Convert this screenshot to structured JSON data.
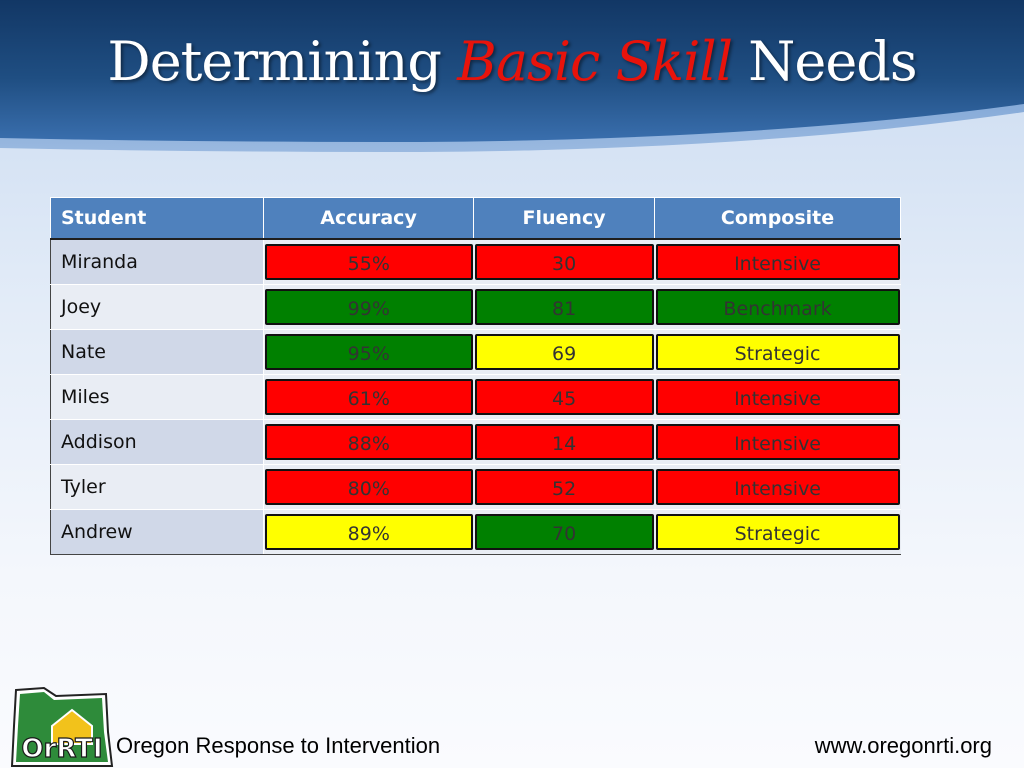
{
  "title": {
    "part1": "Determining ",
    "emphasis": "Basic Skill",
    "part2": " Needs"
  },
  "table": {
    "headers": [
      "Student",
      "Accuracy",
      "Fluency",
      "Composite"
    ],
    "rows": [
      {
        "student": "Miranda",
        "accuracy": "55%",
        "fluency": "30",
        "composite": "Intensive"
      },
      {
        "student": "Joey",
        "accuracy": "99%",
        "fluency": "81",
        "composite": "Benchmark"
      },
      {
        "student": "Nate",
        "accuracy": "95%",
        "fluency": "69",
        "composite": "Strategic"
      },
      {
        "student": "Miles",
        "accuracy": "61%",
        "fluency": "45",
        "composite": "Intensive"
      },
      {
        "student": "Addison",
        "accuracy": "88%",
        "fluency": "14",
        "composite": "Intensive"
      },
      {
        "student": "Tyler",
        "accuracy": "80%",
        "fluency": "52",
        "composite": "Intensive"
      },
      {
        "student": "Andrew",
        "accuracy": "89%",
        "fluency": "70",
        "composite": "Strategic"
      }
    ],
    "status_colors": {
      "red": "#ff0000",
      "green": "#008000",
      "yellow": "#ffff00"
    },
    "cell_colors": [
      [
        "red",
        "red",
        "red"
      ],
      [
        "green",
        "green",
        "green"
      ],
      [
        "green",
        "yellow",
        "yellow"
      ],
      [
        "red",
        "red",
        "red"
      ],
      [
        "red",
        "red",
        "red"
      ],
      [
        "red",
        "red",
        "red"
      ],
      [
        "yellow",
        "green",
        "yellow"
      ]
    ]
  },
  "footer": {
    "logo_text": "OrRTI",
    "org_name": "Oregon Response to Intervention",
    "website": "www.oregonrti.org"
  },
  "colors": {
    "banner": "#1f4e82",
    "header_fill": "#4f81bd",
    "title_emphasis": "#e8130b"
  }
}
